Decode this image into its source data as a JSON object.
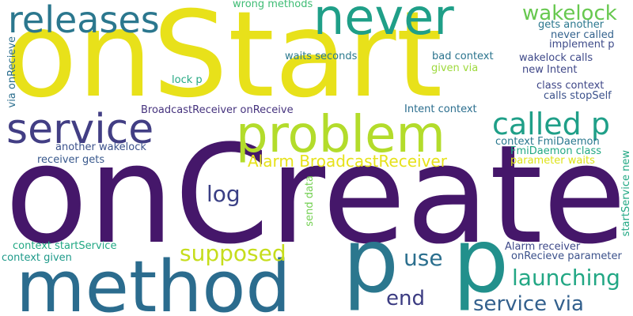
{
  "words": [
    {
      "text": "onStart",
      "color": "#e8e11a"
    },
    {
      "text": "onCreate",
      "color": "#45176a"
    },
    {
      "text": "never",
      "color": "#1f9f88"
    },
    {
      "text": "releases",
      "color": "#2b778e"
    },
    {
      "text": "service",
      "color": "#423e84"
    },
    {
      "text": "problem",
      "color": "#b3dc2b"
    },
    {
      "text": "called p",
      "color": "#1f9f88"
    },
    {
      "text": "wakelock",
      "color": "#67c84f"
    },
    {
      "text": "method",
      "color": "#2b6c8e"
    },
    {
      "text": "p",
      "color": "#2b778e"
    },
    {
      "text": "p",
      "color": "#22908c"
    },
    {
      "text": "log",
      "color": "#3a3f85"
    },
    {
      "text": "supposed",
      "color": "#c6dd1c"
    },
    {
      "text": "use",
      "color": "#2b6f8e"
    },
    {
      "text": "launching",
      "color": "#22a784"
    },
    {
      "text": "end",
      "color": "#3c3c82"
    },
    {
      "text": "service via",
      "color": "#33608d"
    },
    {
      "text": "Alarm BroadcastReceiver",
      "color": "#e6e21b"
    },
    {
      "text": "wrong methods",
      "color": "#3ebc74"
    },
    {
      "text": "gets another",
      "color": "#2b778e"
    },
    {
      "text": "never called",
      "color": "#33628d"
    },
    {
      "text": "implement p",
      "color": "#3e4b89"
    },
    {
      "text": "waits seconds",
      "color": "#2b7a8e"
    },
    {
      "text": "bad context",
      "color": "#2b748e"
    },
    {
      "text": "wakelock calls",
      "color": "#3e4989"
    },
    {
      "text": "given via",
      "color": "#9dd93b"
    },
    {
      "text": "new Intent",
      "color": "#3f4788"
    },
    {
      "text": "lock p",
      "color": "#26a983"
    },
    {
      "text": "class context",
      "color": "#3f4788"
    },
    {
      "text": "calls stopSelf",
      "color": "#3b518b"
    },
    {
      "text": "BroadcastReceiver onReceive",
      "color": "#46337e"
    },
    {
      "text": "Intent context",
      "color": "#2b6e8e"
    },
    {
      "text": "another wakelock",
      "color": "#3b518b"
    },
    {
      "text": "context FmiDaemon",
      "color": "#2a788e"
    },
    {
      "text": "FmiDaemon class",
      "color": "#22a884"
    },
    {
      "text": "receiver gets",
      "color": "#38588c"
    },
    {
      "text": "parameter waits",
      "color": "#dde318"
    },
    {
      "text": "context startService",
      "color": "#22a884"
    },
    {
      "text": "Alarm receiver",
      "color": "#3f4a8a"
    },
    {
      "text": "context given",
      "color": "#1f9a8a"
    },
    {
      "text": "onRecieve parameter",
      "color": "#3b518b"
    },
    {
      "text": "via onRecieve",
      "color": "#2b6e8e"
    },
    {
      "text": "send data",
      "color": "#75d054"
    },
    {
      "text": "startService new",
      "color": "#22a884"
    }
  ]
}
